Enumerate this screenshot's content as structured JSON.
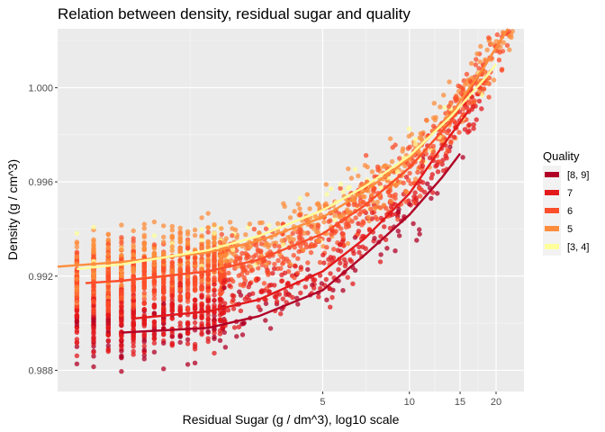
{
  "chart_data": {
    "type": "scatter",
    "title": "Relation between density, residual sugar and quality",
    "xlabel": "Residual Sugar (g / dm^3), log10 scale",
    "ylabel": "Density (g / cm^3)",
    "x_scale": "log10",
    "xlim": [
      0.6,
      25
    ],
    "ylim": [
      0.9871,
      1.0025
    ],
    "x_ticks": [
      5,
      10,
      15,
      20
    ],
    "x_tick_labels": [
      "5",
      "10",
      "15",
      "20"
    ],
    "y_ticks": [
      0.988,
      0.992,
      0.996,
      1.0
    ],
    "y_tick_labels": [
      "0.988",
      "0.992",
      "0.996",
      "1.000"
    ],
    "grid": true,
    "legend": {
      "title": "Quality",
      "position": "right",
      "entries": [
        {
          "label": "[8, 9]",
          "color": "#b10026"
        },
        {
          "label": "7",
          "color": "#e31a1c"
        },
        {
          "label": "6",
          "color": "#fc4e2a"
        },
        {
          "label": "5",
          "color": "#fd8d3c"
        },
        {
          "label": "[3, 4]",
          "color": "#ffff99"
        }
      ]
    },
    "series": [
      {
        "name": "[8, 9]",
        "color": "#b10026",
        "fit": [
          [
            1.0,
            0.9896
          ],
          [
            2.0,
            0.9898
          ],
          [
            3.0,
            0.9903
          ],
          [
            5.0,
            0.9914
          ],
          [
            7.0,
            0.9929
          ],
          [
            10.0,
            0.9946
          ],
          [
            13.0,
            0.9962
          ],
          [
            15.0,
            0.9972
          ]
        ]
      },
      {
        "name": "7",
        "color": "#e31a1c",
        "fit": [
          [
            1.1,
            0.9902
          ],
          [
            2.0,
            0.9905
          ],
          [
            3.0,
            0.991
          ],
          [
            5.0,
            0.9922
          ],
          [
            7.0,
            0.9936
          ],
          [
            10.0,
            0.9955
          ],
          [
            13.0,
            0.9975
          ],
          [
            16.0,
            0.999
          ]
        ]
      },
      {
        "name": "6",
        "color": "#fc4e2a",
        "fit": [
          [
            0.75,
            0.9917
          ],
          [
            1.0,
            0.9918
          ],
          [
            2.0,
            0.9922
          ],
          [
            3.0,
            0.9927
          ],
          [
            5.0,
            0.9938
          ],
          [
            7.0,
            0.995
          ],
          [
            10.0,
            0.9966
          ],
          [
            14.0,
            0.9986
          ],
          [
            18.0,
            1.0008
          ],
          [
            22.0,
            1.0025
          ]
        ]
      },
      {
        "name": "5",
        "color": "#fd8d3c",
        "fit": [
          [
            0.6,
            0.9924
          ],
          [
            1.0,
            0.9926
          ],
          [
            2.0,
            0.993
          ],
          [
            3.0,
            0.9935
          ],
          [
            5.0,
            0.9945
          ],
          [
            7.0,
            0.9956
          ],
          [
            10.0,
            0.997
          ],
          [
            14.0,
            0.9989
          ],
          [
            18.0,
            1.0008
          ],
          [
            22.0,
            1.0025
          ]
        ]
      },
      {
        "name": "[3, 4]",
        "color": "#ffff99",
        "fit": [
          [
            0.7,
            0.9923
          ],
          [
            1.0,
            0.9925
          ],
          [
            2.0,
            0.9931
          ],
          [
            3.0,
            0.9937
          ],
          [
            5.0,
            0.9948
          ],
          [
            7.0,
            0.9958
          ],
          [
            10.0,
            0.9971
          ],
          [
            14.0,
            0.9988
          ],
          [
            18.0,
            1.0003
          ],
          [
            20.0,
            1.001
          ]
        ]
      }
    ]
  }
}
